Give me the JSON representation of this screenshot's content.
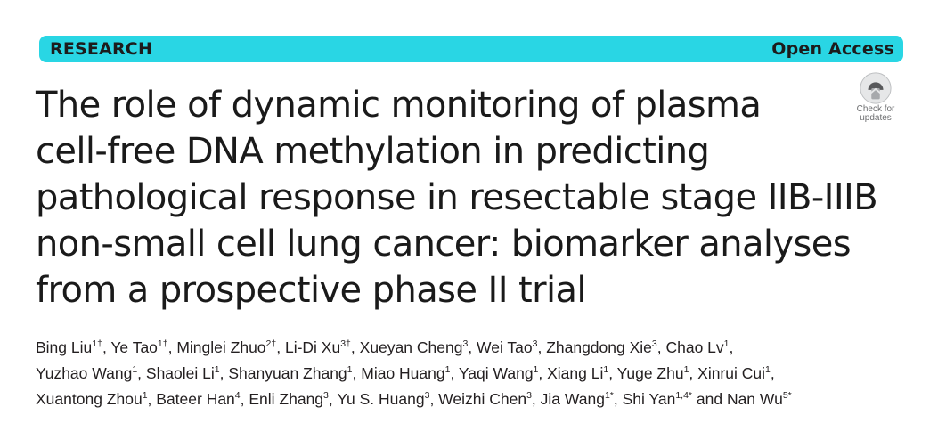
{
  "header": {
    "section": "RESEARCH",
    "access": "Open Access"
  },
  "title_lines": [
    "The role of dynamic monitoring of plasma",
    "cell-free DNA methylation in predicting",
    "pathological response in resectable stage IIB-IIIB",
    "non-small cell lung cancer: biomarker analyses",
    "from a prospective phase II trial"
  ],
  "badge": {
    "icon": "check-for-updates-icon",
    "line1": "Check for",
    "line2": "updates"
  },
  "authors": [
    [
      {
        "name": "Bing Liu",
        "sup": "1†",
        "sep": ", "
      },
      {
        "name": "Ye Tao",
        "sup": "1†",
        "sep": ", "
      },
      {
        "name": "Minglei Zhuo",
        "sup": "2†",
        "sep": ", "
      },
      {
        "name": "Li-Di Xu",
        "sup": "3†",
        "sep": ", "
      },
      {
        "name": "Xueyan Cheng",
        "sup": "3",
        "sep": ", "
      },
      {
        "name": "Wei Tao",
        "sup": "3",
        "sep": ", "
      },
      {
        "name": "Zhangdong Xie",
        "sup": "3",
        "sep": ", "
      },
      {
        "name": "Chao Lv",
        "sup": "1",
        "sep": ","
      }
    ],
    [
      {
        "name": "Yuzhao Wang",
        "sup": "1",
        "sep": ", "
      },
      {
        "name": "Shaolei Li",
        "sup": "1",
        "sep": ", "
      },
      {
        "name": "Shanyuan Zhang",
        "sup": "1",
        "sep": ", "
      },
      {
        "name": "Miao Huang",
        "sup": "1",
        "sep": ", "
      },
      {
        "name": "Yaqi Wang",
        "sup": "1",
        "sep": ", "
      },
      {
        "name": "Xiang Li",
        "sup": "1",
        "sep": ", "
      },
      {
        "name": "Yuge Zhu",
        "sup": "1",
        "sep": ", "
      },
      {
        "name": "Xinrui Cui",
        "sup": "1",
        "sep": ","
      }
    ],
    [
      {
        "name": "Xuantong Zhou",
        "sup": "1",
        "sep": ", "
      },
      {
        "name": "Bateer Han",
        "sup": "4",
        "sep": ", "
      },
      {
        "name": "Enli Zhang",
        "sup": "3",
        "sep": ", "
      },
      {
        "name": "Yu S. Huang",
        "sup": "3",
        "sep": ", "
      },
      {
        "name": "Weizhi Chen",
        "sup": "3",
        "sep": ", "
      },
      {
        "name": "Jia Wang",
        "sup": "1*",
        "sep": ", "
      },
      {
        "name": "Shi Yan",
        "sup": "1,4*",
        "sep": " and "
      },
      {
        "name": "Nan Wu",
        "sup": "5*",
        "sep": ""
      }
    ]
  ]
}
